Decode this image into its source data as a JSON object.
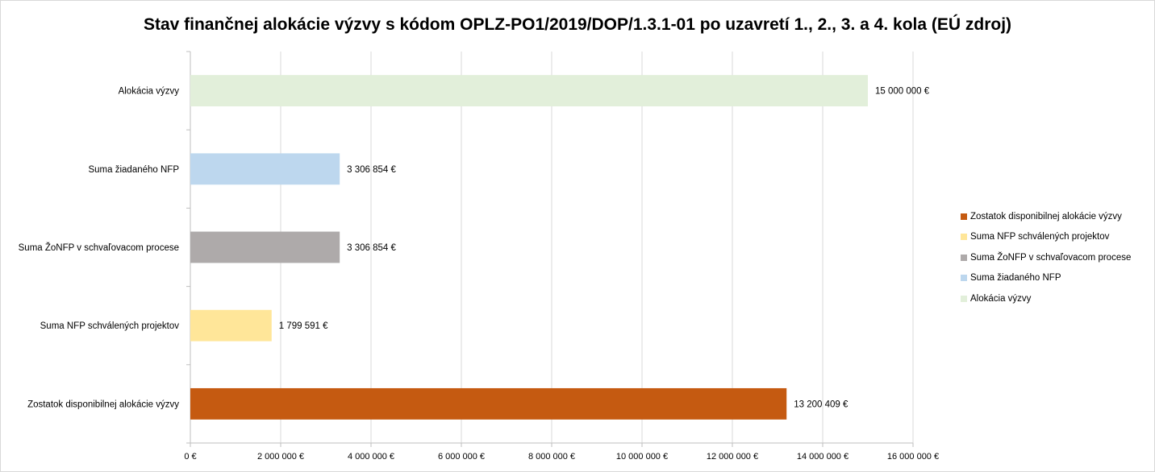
{
  "chart_data": {
    "type": "bar",
    "orientation": "horizontal",
    "title": "Stav finančnej alokácie výzvy s kódom OPLZ-PO1/2019/DOP/1.3.1-01 po uzavretí 1., 2., 3. a 4. kola (EÚ zdroj)",
    "xlabel": "",
    "ylabel": "",
    "xlim": [
      0,
      16000000
    ],
    "x_ticks": [
      "0 €",
      "2 000 000 €",
      "4 000 000 €",
      "6 000 000 €",
      "8 000 000 €",
      "10 000 000 €",
      "12 000 000 €",
      "14 000 000 €",
      "16 000 000 €"
    ],
    "grid": "vertical",
    "legend_position": "right",
    "categories": [
      "Alokácia výzvy",
      "Suma žiadaného NFP",
      "Suma ŽoNFP v schvaľovacom procese",
      "Suma NFP schválených projektov",
      "Zostatok disponibilnej alokácie výzvy"
    ],
    "values": [
      15000000,
      3306854,
      3306854,
      1799591,
      13200409
    ],
    "data_labels": [
      "15 000 000 €",
      "3 306 854 €",
      "3 306 854 €",
      "1 799 591 €",
      "13 200 409 €"
    ],
    "colors": [
      "#e2efda",
      "#bdd7ee",
      "#aeaaaa",
      "#ffe699",
      "#c55a11"
    ],
    "legend": [
      {
        "label": "Zostatok disponibilnej alokácie výzvy",
        "color": "#c55a11"
      },
      {
        "label": "Suma NFP schválených projektov",
        "color": "#ffe699"
      },
      {
        "label": "Suma ŽoNFP v schvaľovacom procese",
        "color": "#aeaaaa"
      },
      {
        "label": "Suma žiadaného NFP",
        "color": "#bdd7ee"
      },
      {
        "label": "Alokácia výzvy",
        "color": "#e2efda"
      }
    ]
  }
}
